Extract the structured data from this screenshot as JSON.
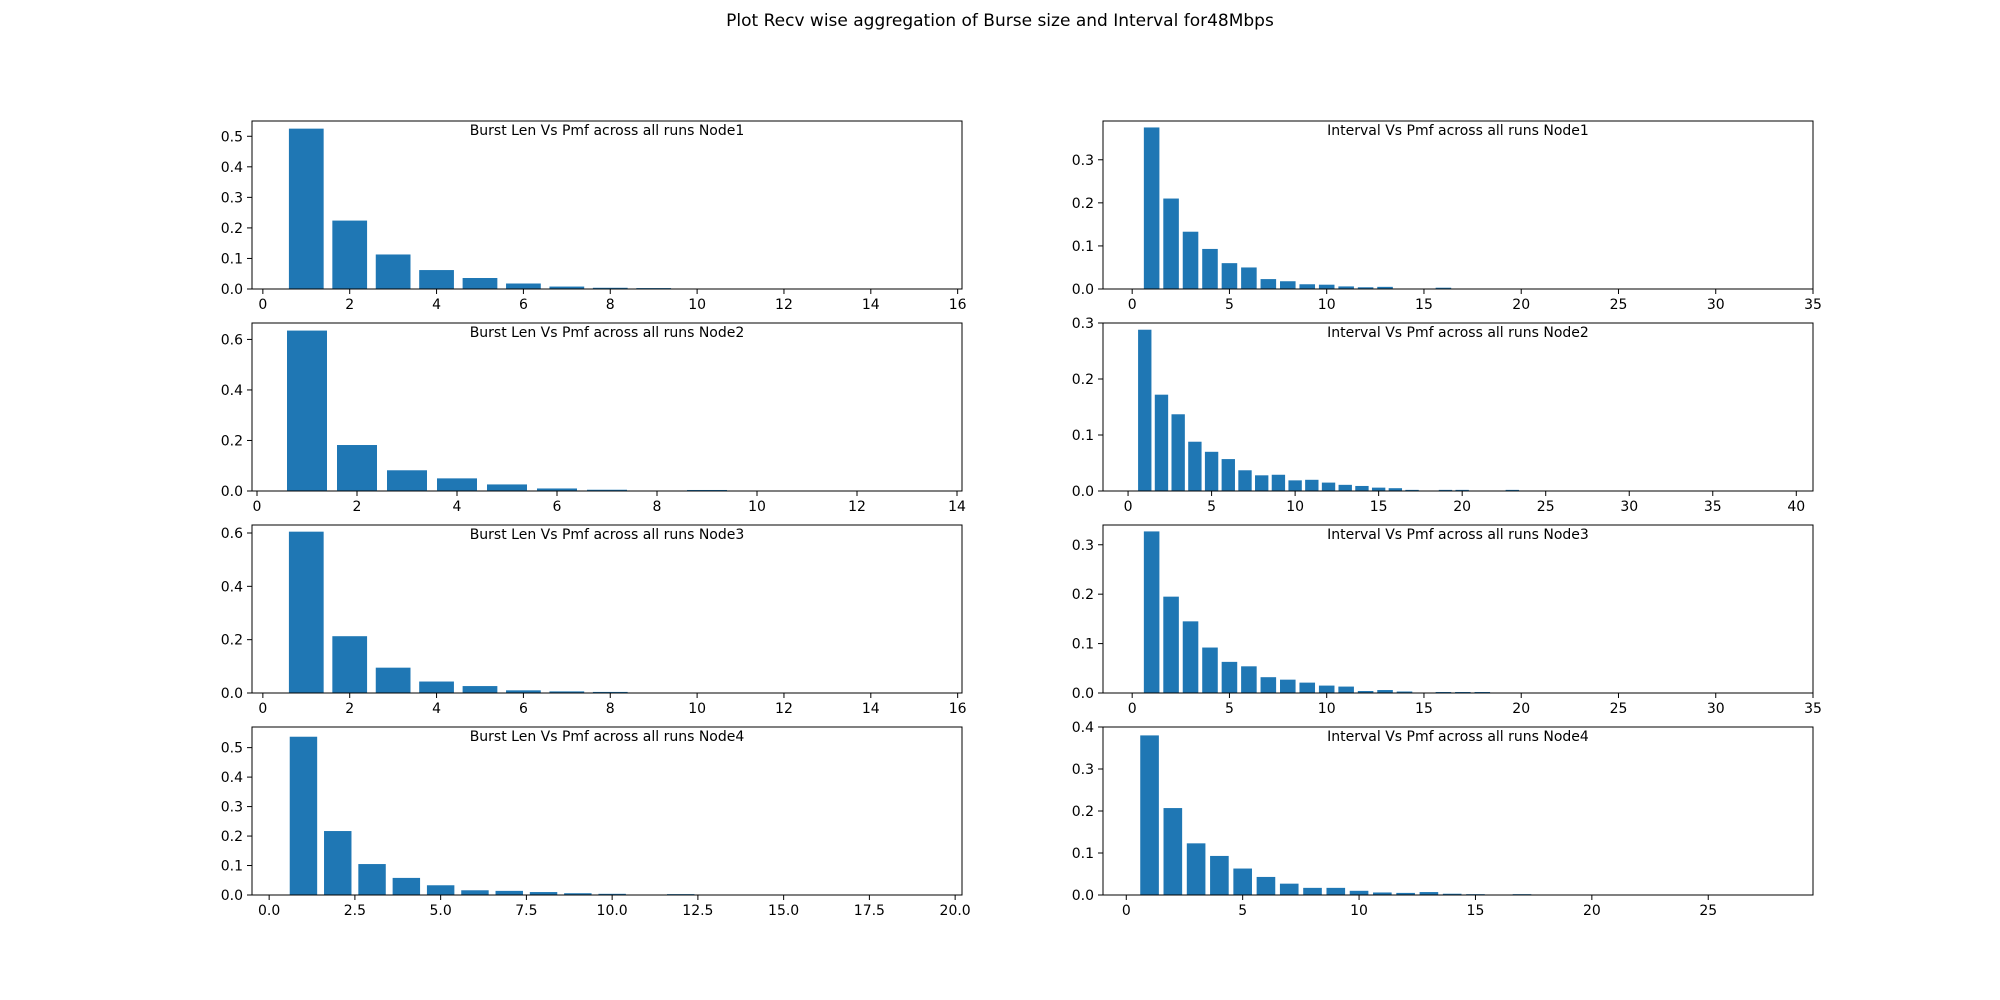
{
  "figure": {
    "title": "Plot Recv wise aggregation of Burse size and Interval for48Mbps"
  },
  "chart_data": [
    {
      "type": "bar",
      "title": "Burst Len  Vs Pmf across all runs Node1",
      "xlabel": "",
      "ylabel": "",
      "xlim": [
        -0.25,
        16.1
      ],
      "ylim": [
        0,
        0.55
      ],
      "xticks": [
        0,
        2,
        4,
        6,
        8,
        10,
        12,
        14,
        16
      ],
      "xtick_labels": [
        "0",
        "2",
        "4",
        "6",
        "8",
        "10",
        "12",
        "14",
        "16"
      ],
      "yticks": [
        0,
        0.1,
        0.2,
        0.3,
        0.4,
        0.5
      ],
      "ytick_labels": [
        "0.0",
        "0.1",
        "0.2",
        "0.3",
        "0.4",
        "0.5"
      ],
      "bar_width": 0.8,
      "x": [
        1,
        2,
        3,
        4,
        5,
        6,
        7,
        8,
        9
      ],
      "values": [
        0.525,
        0.224,
        0.113,
        0.062,
        0.036,
        0.018,
        0.008,
        0.004,
        0.003
      ],
      "grid": false,
      "legend": "none"
    },
    {
      "type": "bar",
      "title": "Interval Vs Pmf across all runs Node1",
      "xlabel": "",
      "ylabel": "",
      "xlim": [
        -1.5,
        35
      ],
      "ylim": [
        0,
        0.39
      ],
      "xticks": [
        0,
        5,
        10,
        15,
        20,
        25,
        30,
        35
      ],
      "xtick_labels": [
        "0",
        "5",
        "10",
        "15",
        "20",
        "25",
        "30",
        "35"
      ],
      "yticks": [
        0,
        0.1,
        0.2,
        0.3
      ],
      "ytick_labels": [
        "0.0",
        "0.1",
        "0.2",
        "0.3"
      ],
      "bar_width": 0.8,
      "x": [
        1,
        2,
        3,
        4,
        5,
        6,
        7,
        8,
        9,
        10,
        11,
        12,
        13,
        16
      ],
      "values": [
        0.375,
        0.21,
        0.133,
        0.093,
        0.06,
        0.05,
        0.023,
        0.018,
        0.011,
        0.01,
        0.006,
        0.004,
        0.005,
        0.003
      ],
      "grid": false,
      "legend": "none"
    },
    {
      "type": "bar",
      "title": "Burst Len  Vs Pmf across all runs Node2",
      "xlabel": "",
      "ylabel": "",
      "xlim": [
        -0.1,
        14.1
      ],
      "ylim": [
        0,
        0.665
      ],
      "xticks": [
        0,
        2,
        4,
        6,
        8,
        10,
        12,
        14
      ],
      "xtick_labels": [
        "0",
        "2",
        "4",
        "6",
        "8",
        "10",
        "12",
        "14"
      ],
      "yticks": [
        0,
        0.2,
        0.4,
        0.6
      ],
      "ytick_labels": [
        "0.0",
        "0.2",
        "0.4",
        "0.6"
      ],
      "bar_width": 0.8,
      "x": [
        1,
        2,
        3,
        4,
        5,
        6,
        7,
        9
      ],
      "values": [
        0.635,
        0.182,
        0.082,
        0.05,
        0.026,
        0.01,
        0.005,
        0.004
      ],
      "grid": false,
      "legend": "none"
    },
    {
      "type": "bar",
      "title": "Interval Vs Pmf across all runs Node2",
      "xlabel": "",
      "ylabel": "",
      "xlim": [
        -1.5,
        41
      ],
      "ylim": [
        0,
        0.3
      ],
      "xticks": [
        0,
        5,
        10,
        15,
        20,
        25,
        30,
        35,
        40
      ],
      "xtick_labels": [
        "0",
        "5",
        "10",
        "15",
        "20",
        "25",
        "30",
        "35",
        "40"
      ],
      "yticks": [
        0,
        0.1,
        0.2,
        0.3
      ],
      "ytick_labels": [
        "0.0",
        "0.1",
        "0.2",
        "0.3"
      ],
      "bar_width": 0.8,
      "x": [
        1,
        2,
        3,
        4,
        5,
        6,
        7,
        8,
        9,
        10,
        11,
        12,
        13,
        14,
        15,
        16,
        17,
        19,
        20,
        23
      ],
      "values": [
        0.288,
        0.172,
        0.137,
        0.088,
        0.07,
        0.057,
        0.037,
        0.028,
        0.029,
        0.019,
        0.02,
        0.015,
        0.011,
        0.009,
        0.006,
        0.005,
        0.002,
        0.002,
        0.002,
        0.002
      ],
      "grid": false,
      "legend": "none"
    },
    {
      "type": "bar",
      "title": "Burst Len  Vs Pmf across all runs Node3",
      "xlabel": "",
      "ylabel": "",
      "xlim": [
        -0.25,
        16.1
      ],
      "ylim": [
        0,
        0.63
      ],
      "xticks": [
        0,
        2,
        4,
        6,
        8,
        10,
        12,
        14,
        16
      ],
      "xtick_labels": [
        "0",
        "2",
        "4",
        "6",
        "8",
        "10",
        "12",
        "14",
        "16"
      ],
      "yticks": [
        0,
        0.2,
        0.4,
        0.6
      ],
      "ytick_labels": [
        "0.0",
        "0.2",
        "0.4",
        "0.6"
      ],
      "bar_width": 0.8,
      "x": [
        1,
        2,
        3,
        4,
        5,
        6,
        7,
        8
      ],
      "values": [
        0.605,
        0.213,
        0.095,
        0.043,
        0.026,
        0.01,
        0.006,
        0.004
      ],
      "grid": false,
      "legend": "none"
    },
    {
      "type": "bar",
      "title": "Interval Vs Pmf across all runs Node3",
      "xlabel": "",
      "ylabel": "",
      "xlim": [
        -1.5,
        35
      ],
      "ylim": [
        0,
        0.34
      ],
      "xticks": [
        0,
        5,
        10,
        15,
        20,
        25,
        30,
        35
      ],
      "xtick_labels": [
        "0",
        "5",
        "10",
        "15",
        "20",
        "25",
        "30",
        "35"
      ],
      "yticks": [
        0,
        0.1,
        0.2,
        0.3
      ],
      "ytick_labels": [
        "0.0",
        "0.1",
        "0.2",
        "0.3"
      ],
      "bar_width": 0.8,
      "x": [
        1,
        2,
        3,
        4,
        5,
        6,
        7,
        8,
        9,
        10,
        11,
        12,
        13,
        14,
        16,
        17,
        18
      ],
      "values": [
        0.327,
        0.195,
        0.145,
        0.092,
        0.063,
        0.054,
        0.032,
        0.027,
        0.021,
        0.015,
        0.013,
        0.004,
        0.006,
        0.003,
        0.002,
        0.002,
        0.002
      ],
      "grid": false,
      "legend": "none"
    },
    {
      "type": "bar",
      "title": "Burst Len  Vs Pmf across all runs Node4",
      "xlabel": "",
      "ylabel": "",
      "xlim": [
        -0.5,
        20.2
      ],
      "ylim": [
        0,
        0.57
      ],
      "xticks": [
        0,
        2.5,
        5,
        7.5,
        10,
        12.5,
        15,
        17.5,
        20
      ],
      "xtick_labels": [
        "0.0",
        "2.5",
        "5.0",
        "7.5",
        "10.0",
        "12.5",
        "15.0",
        "17.5",
        "20.0"
      ],
      "yticks": [
        0,
        0.1,
        0.2,
        0.3,
        0.4,
        0.5
      ],
      "ytick_labels": [
        "0.0",
        "0.1",
        "0.2",
        "0.3",
        "0.4",
        "0.5"
      ],
      "bar_width": 0.8,
      "x": [
        1,
        2,
        3,
        4,
        5,
        6,
        7,
        8,
        9,
        10,
        12
      ],
      "values": [
        0.537,
        0.217,
        0.105,
        0.058,
        0.033,
        0.016,
        0.014,
        0.01,
        0.006,
        0.004,
        0.003
      ],
      "grid": false,
      "legend": "none"
    },
    {
      "type": "bar",
      "title": "Interval Vs Pmf across all runs Node4",
      "xlabel": "",
      "ylabel": "",
      "xlim": [
        -1.0,
        29.5
      ],
      "ylim": [
        0,
        0.4
      ],
      "xticks": [
        0,
        5,
        10,
        15,
        20,
        25
      ],
      "xtick_labels": [
        "0",
        "5",
        "10",
        "15",
        "20",
        "25"
      ],
      "yticks": [
        0,
        0.1,
        0.2,
        0.3,
        0.4
      ],
      "ytick_labels": [
        "0.0",
        "0.1",
        "0.2",
        "0.3",
        "0.4"
      ],
      "bar_width": 0.8,
      "x": [
        1,
        2,
        3,
        4,
        5,
        6,
        7,
        8,
        9,
        10,
        11,
        12,
        13,
        14,
        15,
        17
      ],
      "values": [
        0.38,
        0.207,
        0.123,
        0.093,
        0.063,
        0.043,
        0.027,
        0.017,
        0.017,
        0.01,
        0.006,
        0.005,
        0.007,
        0.003,
        0.002,
        0.002
      ],
      "grid": false,
      "legend": "none"
    }
  ]
}
